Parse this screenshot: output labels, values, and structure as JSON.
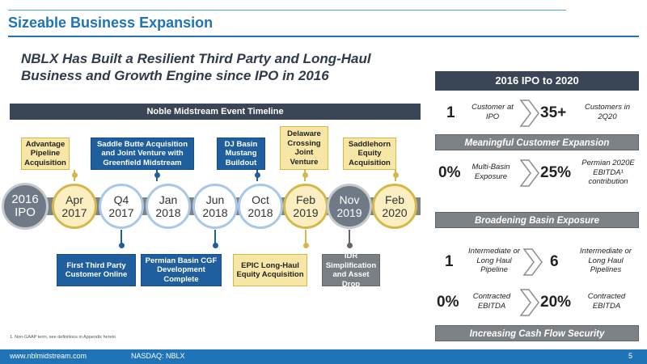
{
  "slide": {
    "title": "Sizeable Business Expansion",
    "subtitle": "NBLX Has Built a Resilient Third Party and Long-Haul Business and Growth Engine since IPO in 2016"
  },
  "timeline": {
    "header": "Noble Midstream Event Timeline",
    "milestones": [
      {
        "line1": "2016",
        "line2": "IPO"
      },
      {
        "line1": "Apr",
        "line2": "2017"
      },
      {
        "line1": "Q4",
        "line2": "2017"
      },
      {
        "line1": "Jan",
        "line2": "2018"
      },
      {
        "line1": "Jun",
        "line2": "2018"
      },
      {
        "line1": "Oct",
        "line2": "2018"
      },
      {
        "line1": "Feb",
        "line2": "2019"
      },
      {
        "line1": "Nov",
        "line2": "2019"
      },
      {
        "line1": "Feb",
        "line2": "2020"
      }
    ],
    "events": {
      "advantage": "Advantage Pipeline Acquisition",
      "saddle_butte": "Saddle Butte Acquisition and Joint Venture with Greenfield Midstream",
      "dj_basin": "DJ Basin Mustang Buildout",
      "delaware": "Delaware Crossing Joint Venture",
      "saddlehorn": "Saddlehorn Equity Acquisition",
      "first_third_party": "First Third Party Customer Online",
      "permian_cgf": "Permian Basin CGF Development Complete",
      "epic": "EPIC Long-Haul Equity Acquisition",
      "idr": "IDR Simplification and Asset Drop"
    }
  },
  "panel": {
    "header": "2016 IPO to 2020",
    "customers": {
      "left_value": "1",
      "left_label": "Customer at IPO",
      "right_value": "35+",
      "right_label": "Customers in 2Q20"
    },
    "section1": "Meaningful Customer Expansion",
    "basin": {
      "left_value": "0%",
      "left_label": "Multi-Basin Exposure",
      "right_value": "25%",
      "right_label": "Permian 2020E EBITDA¹ contribution"
    },
    "section2": "Broadening Basin Exposure",
    "pipelines": {
      "left_value": "1",
      "left_label": "Intermediate or Long Haul Pipeline",
      "right_value": "6",
      "right_label": "Intermediate or Long Haul Pipelines"
    },
    "ebitda": {
      "left_value": "0%",
      "left_label": "Contracted EBITDA",
      "right_value": "20%",
      "right_label": "Contracted EBITDA"
    },
    "section3": "Increasing Cash Flow Security"
  },
  "footnote": "1.     Non-GAAP term, see definitions in Appendix hereto",
  "footer": {
    "link": "www.nblmidstream.com",
    "ticker": "NASDAQ: NBLX",
    "page": "5"
  },
  "colors": {
    "brand_blue": "#1f73b7",
    "navy": "#3a4655",
    "gold": "#f7e7a6",
    "event_blue": "#1f5f9e",
    "gray": "#7d8287"
  },
  "icons": {
    "chevron": "chevron-right-icon"
  }
}
